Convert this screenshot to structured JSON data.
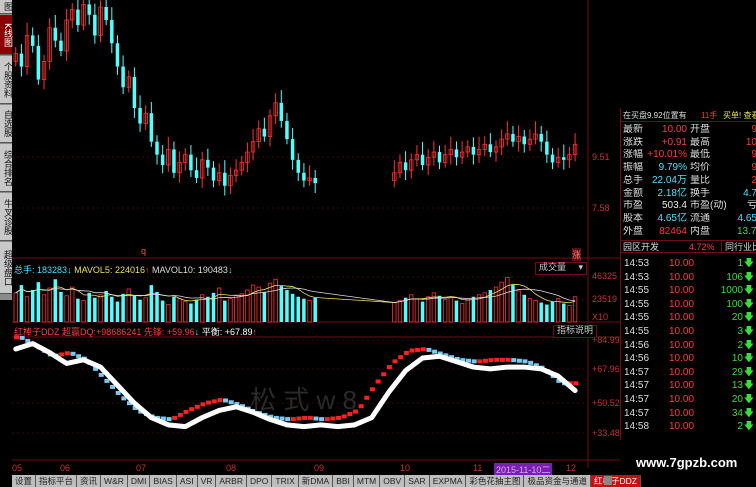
{
  "sidebar": {
    "items": [
      {
        "label": "图"
      },
      {
        "label": "K线图",
        "active": true
      },
      {
        "label": "个股资料"
      },
      {
        "label": "自选股"
      },
      {
        "label": "综合排名"
      },
      {
        "label": "牛叉诊股"
      },
      {
        "label": "超级盘口"
      }
    ]
  },
  "price_axis": [
    "9.51",
    "7.58"
  ],
  "markers": {
    "low": "q",
    "limit_up": "涨"
  },
  "volume": {
    "label_total": "总手:",
    "total": "183283",
    "ma5_label": "MAVOL5:",
    "ma5": "224016",
    "ma10_label": "MAVOL10:",
    "ma10": "190483",
    "selector": "成交量",
    "axis": [
      "46325",
      "23519",
      "X10"
    ]
  },
  "indicator": {
    "name": "红棒子DDZ",
    "f1_label": "超赢DQ:",
    "f1": "+98686241",
    "f2_label": "先锋:",
    "f2": "+59.96",
    "f3_label": "平衡:",
    "f3": "+67.89",
    "help": "指标说明",
    "axis": [
      "+84.99",
      "+67.96",
      "+50.52",
      "+33.48"
    ],
    "watermark": "松 式    w 8"
  },
  "dates": [
    "05",
    "06",
    "07",
    "08",
    "09",
    "10",
    "11",
    "2015-11-10二",
    "12"
  ],
  "tabs": [
    "设置",
    "指标平台",
    "资讯",
    "W&R",
    "DMI",
    "BIAS",
    "ASI",
    "VR",
    "ARBR",
    "DPO",
    "TRIX",
    "新DMA",
    "BBI",
    "MTM",
    "OBV",
    "SAR",
    "EXPMA",
    "彩色花抽主图",
    "极品资金与通道",
    "红棒子DDZ"
  ],
  "active_tab": "红棒子DDZ",
  "website": "www.7gpzb.com",
  "quote": {
    "notice": "在买盘9.92位置有",
    "notice_qty": "11手",
    "notice_link": "买单! 查看详",
    "rows": [
      {
        "l1": "最新",
        "v1": "10.00",
        "c1": "#ff3c3c",
        "l2": "开盘",
        "v2": "9",
        "c2": "#ff3c3c"
      },
      {
        "l1": "涨跌",
        "v1": "+0.91",
        "c1": "#ff3c3c",
        "l2": "最高",
        "v2": "10",
        "c2": "#ff3c3c"
      },
      {
        "l1": "涨幅",
        "v1": "+10.01%",
        "c1": "#ff3c3c",
        "l2": "最低",
        "v2": "9",
        "c2": "#ff3c3c"
      },
      {
        "l1": "振幅",
        "v1": "9.79%",
        "c1": "#4fe0ff",
        "l2": "均价",
        "v2": "9",
        "c2": "#ff3c3c"
      },
      {
        "l1": "总手",
        "v1": "22.04万",
        "c1": "#4fe0ff",
        "l2": "量比",
        "v2": "2",
        "c2": "#ff3c3c"
      },
      {
        "l1": "金额",
        "v1": "2.18亿",
        "c1": "#4fe0ff",
        "l2": "换手",
        "v2": "4.7",
        "c2": "#4fe0ff"
      },
      {
        "l1": "市盈",
        "v1": "503.4",
        "c1": "#e8e8e8",
        "l2": "市盈(动)",
        "v2": "亏",
        "c2": "#e8e8e8"
      },
      {
        "l1": "股本",
        "v1": "4.65亿",
        "c1": "#4fe0ff",
        "l2": "流通",
        "v2": "4.65",
        "c2": "#4fe0ff"
      },
      {
        "l1": "外盘",
        "v1": "82464",
        "c1": "#ff3c3c",
        "l2": "内盘",
        "v2": "13.75",
        "c2": "#3cdc3c"
      }
    ],
    "sector": "园区开发",
    "sector_pct": "4.72%",
    "peer": "同行业比较"
  },
  "trades": [
    {
      "t": "14:53",
      "p": "10.00",
      "v": "1"
    },
    {
      "t": "14:53",
      "p": "10.00",
      "v": "106"
    },
    {
      "t": "14:55",
      "p": "10.00",
      "v": "1000"
    },
    {
      "t": "14:55",
      "p": "10.00",
      "v": "100"
    },
    {
      "t": "14:55",
      "p": "10.00",
      "v": "20"
    },
    {
      "t": "14:55",
      "p": "10.00",
      "v": "3"
    },
    {
      "t": "14:56",
      "p": "10.00",
      "v": "2"
    },
    {
      "t": "14:56",
      "p": "10.00",
      "v": "10"
    },
    {
      "t": "14:57",
      "p": "10.00",
      "v": "29"
    },
    {
      "t": "14:57",
      "p": "10.00",
      "v": "13"
    },
    {
      "t": "14:57",
      "p": "10.00",
      "v": "20"
    },
    {
      "t": "14:57",
      "p": "10.00",
      "v": "34"
    },
    {
      "t": "14:58",
      "p": "10.00",
      "v": "2"
    }
  ],
  "colors": {
    "up": "#ff3232",
    "down": "#54ffff",
    "grid": "#6b1010",
    "axis_text": "#c83232",
    "line": "#ffffff"
  },
  "chart_data": {
    "type": "candlestick",
    "price_range": [
      5.61,
      15.57
    ],
    "closes": [
      13.5,
      13.0,
      14.2,
      13.8,
      12.5,
      13.2,
      14.5,
      14.0,
      13.6,
      14.8,
      15.2,
      14.6,
      15.4,
      15.0,
      14.2,
      15.3,
      14.8,
      13.9,
      13.0,
      12.2,
      12.6,
      11.4,
      10.8,
      11.2,
      10.1,
      9.6,
      9.2,
      9.8,
      8.9,
      9.3,
      9.6,
      9.0,
      8.7,
      9.4,
      9.1,
      8.6,
      8.9,
      8.4,
      8.8,
      9.0,
      9.3,
      9.7,
      10.1,
      10.6,
      10.3,
      11.1,
      11.6,
      10.9,
      10.2,
      9.4,
      8.9,
      8.6,
      8.7,
      8.5,
      null,
      null,
      null,
      null,
      null,
      null,
      null,
      null,
      null,
      null,
      null,
      null,
      null,
      8.9,
      9.3,
      9.0,
      9.4,
      9.6,
      9.2,
      9.5,
      9.7,
      9.3,
      9.6,
      9.8,
      9.5,
      9.7,
      9.9,
      9.6,
      9.8,
      10.0,
      9.7,
      9.9,
      10.2,
      10.4,
      10.1,
      10.3,
      10.0,
      10.2,
      10.4,
      10.1,
      9.6,
      9.3,
      9.5,
      9.4,
      9.6,
      10.0
    ],
    "volumes": [
      30000,
      38000,
      26000,
      33000,
      41000,
      28000,
      35000,
      44000,
      31000,
      27000,
      36000,
      24000,
      22000,
      30000,
      25000,
      28000,
      32000,
      26000,
      21000,
      29000,
      34000,
      27000,
      23000,
      25000,
      38000,
      31000,
      22000,
      18000,
      26000,
      24000,
      21000,
      19000,
      23000,
      28000,
      26000,
      30000,
      35000,
      22000,
      24000,
      27000,
      29000,
      33000,
      38000,
      36000,
      31000,
      40000,
      44000,
      37000,
      33000,
      29000,
      26000,
      24000,
      22000,
      25000,
      null,
      null,
      null,
      null,
      null,
      null,
      null,
      null,
      null,
      null,
      null,
      null,
      null,
      20000,
      22000,
      25000,
      28000,
      24000,
      21000,
      26000,
      30000,
      27000,
      23000,
      25000,
      22000,
      19000,
      24000,
      26000,
      28000,
      30000,
      33000,
      36000,
      41000,
      46000,
      38000,
      32000,
      28000,
      24000,
      22000,
      20000,
      18000,
      21000,
      24000,
      19000,
      17000,
      26000
    ],
    "balance_line": [
      80,
      83,
      78,
      72,
      74,
      70,
      60,
      50,
      42,
      38,
      37,
      42,
      46,
      48,
      45,
      41,
      38,
      37,
      38,
      37,
      38,
      42,
      56,
      68,
      75,
      76,
      73,
      70,
      69,
      70,
      70,
      69,
      65,
      57
    ],
    "balance_range": [
      33.48,
      84.99
    ]
  }
}
